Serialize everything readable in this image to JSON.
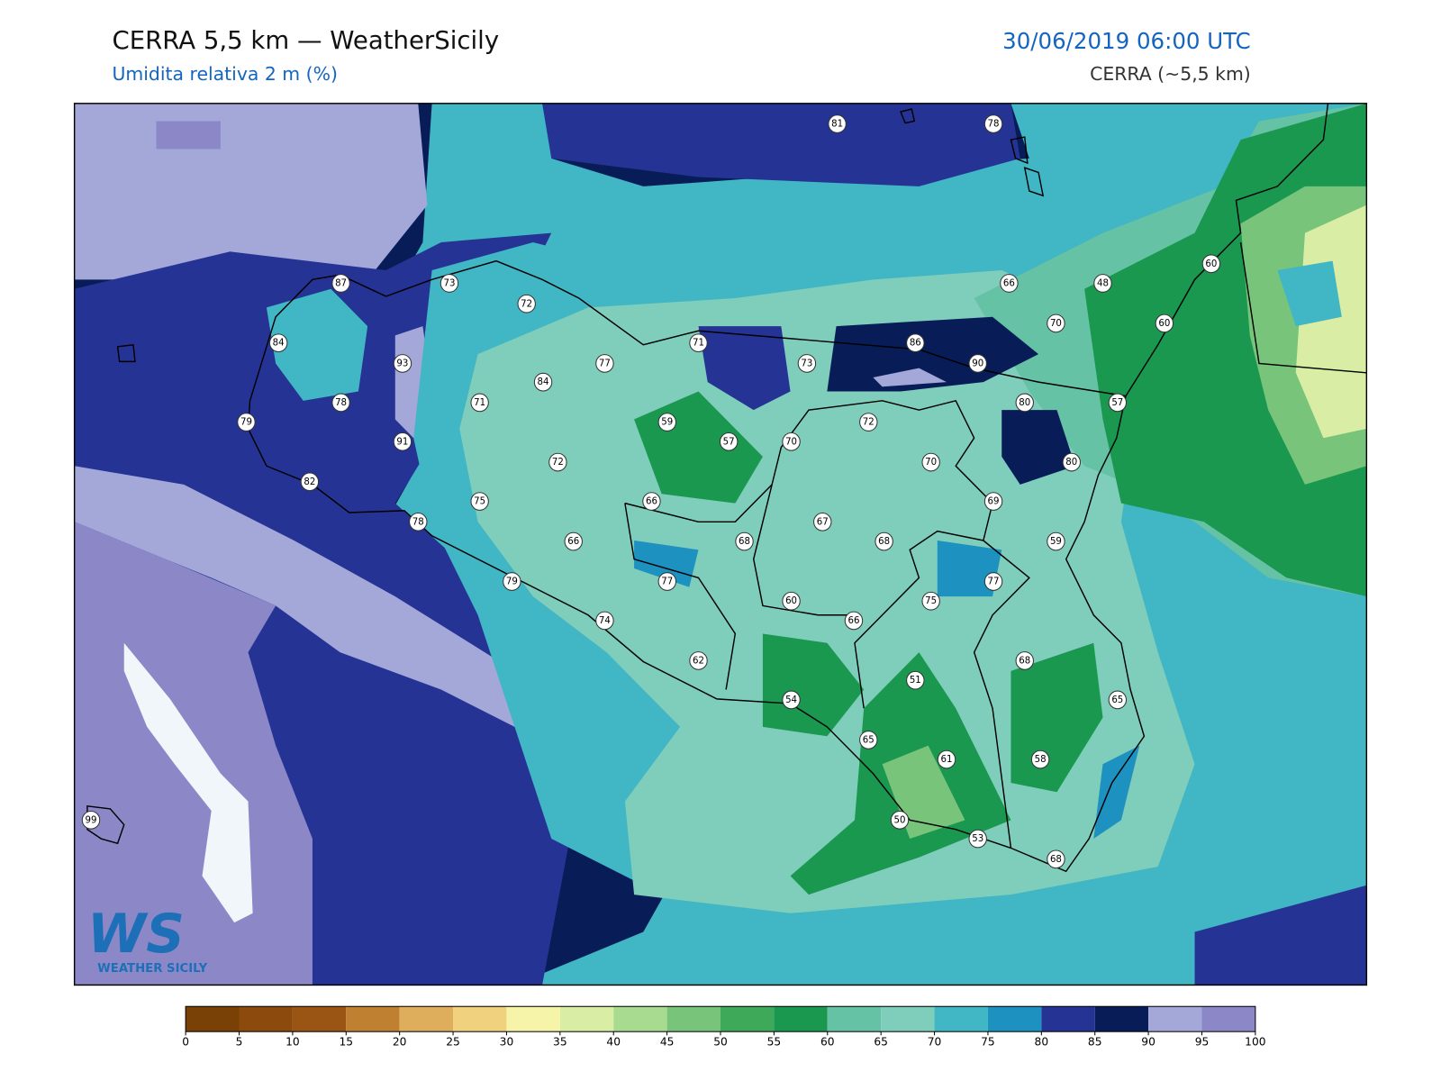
{
  "header": {
    "title": "CERRA 5,5 km — WeatherSicily",
    "subtitle": "Umidita relativa 2 m (%)",
    "datetime": "30/06/2019 06:00 UTC",
    "model": "CERRA (~5,5 km)"
  },
  "stations": [
    81,
    78,
    87,
    73,
    72,
    66,
    48,
    60,
    84,
    93,
    77,
    71,
    73,
    86,
    90,
    70,
    60,
    78,
    71,
    84,
    79,
    59,
    57,
    70,
    72,
    80,
    57,
    91,
    72,
    70,
    80,
    82,
    75,
    66,
    69,
    78,
    66,
    68,
    67,
    68,
    59,
    79,
    77,
    60,
    66,
    75,
    77,
    74,
    62,
    68,
    51,
    54,
    65,
    65,
    61,
    58,
    50,
    53,
    68,
    99
  ],
  "logo": {
    "mark": "WS",
    "name": "WEATHER SICILY"
  },
  "colorbar": {
    "ticks": [
      0,
      5,
      10,
      15,
      20,
      25,
      30,
      35,
      40,
      45,
      50,
      55,
      60,
      65,
      70,
      75,
      80,
      85,
      90,
      95,
      100
    ],
    "colors": [
      "#7a4106",
      "#8c4a0c",
      "#9a5414",
      "#c08032",
      "#dfae5c",
      "#f0d27e",
      "#f6f4a8",
      "#d9eda4",
      "#a8db8f",
      "#78c47a",
      "#3fa95a",
      "#1a9850",
      "#66c2a4",
      "#7fcdbb",
      "#41b6c4",
      "#1d91c0",
      "#253494",
      "#081d58",
      "#a3a8d9",
      "#8c88c8"
    ]
  }
}
